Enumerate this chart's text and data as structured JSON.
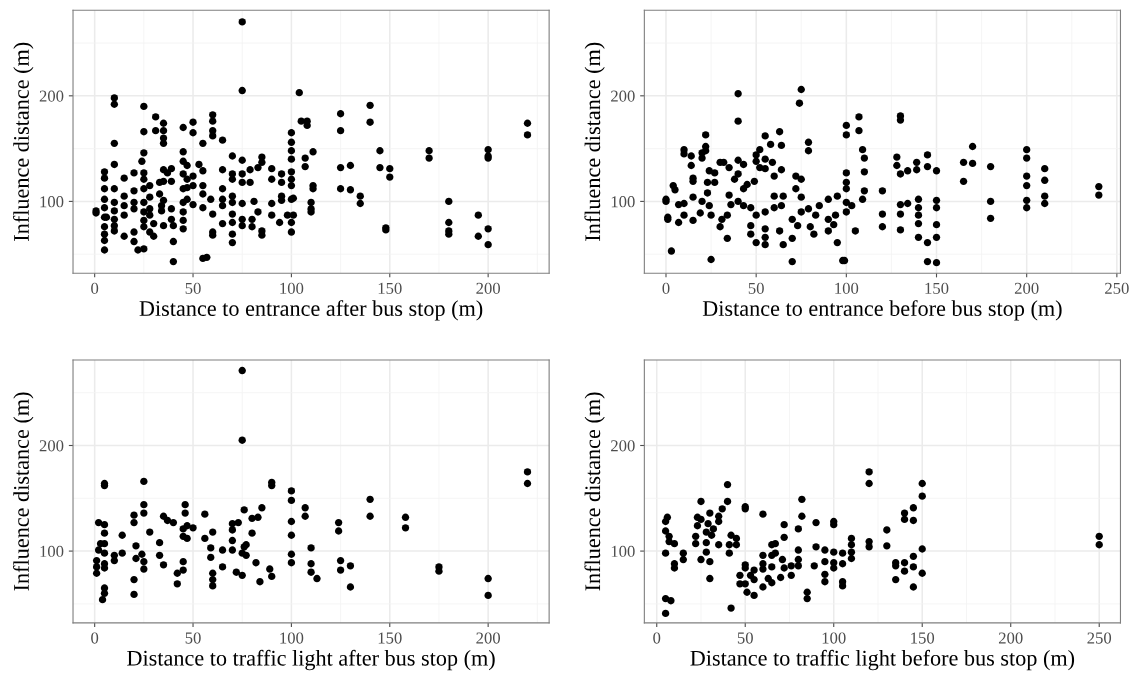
{
  "chart_data": [
    {
      "type": "scatter",
      "xlabel": "Distance to entrance after bus stop (m)",
      "ylabel": "Influence distance (m)",
      "xlim": [
        -11,
        231
      ],
      "ylim": [
        32,
        281
      ],
      "xticks": [
        0,
        50,
        100,
        150,
        200
      ],
      "yticks": [
        100,
        200
      ],
      "grid": true,
      "marker": "circle",
      "series": [
        {
          "color": "#000000",
          "x": [
            0.7,
            0.7,
            5,
            5,
            5,
            5,
            5,
            5,
            5,
            5,
            5,
            5,
            6,
            10,
            10,
            10,
            10,
            10,
            10,
            10,
            10,
            10,
            10,
            15,
            15,
            15,
            15,
            15,
            20,
            20,
            20,
            20,
            20,
            20,
            22,
            25,
            25,
            25,
            24,
            25,
            25,
            25,
            25,
            25,
            25,
            25,
            25,
            28,
            28,
            28,
            28,
            28,
            30,
            30,
            31,
            31,
            33,
            33,
            34,
            34,
            35,
            35,
            35,
            35,
            35,
            35,
            35,
            35,
            37,
            39,
            39,
            39,
            39,
            40,
            40,
            40,
            45,
            45,
            45,
            45,
            45,
            45,
            45,
            45,
            45,
            47,
            47,
            47,
            47,
            50,
            50,
            50,
            50,
            50,
            53,
            55,
            55,
            55,
            55,
            55,
            55,
            57,
            59,
            60,
            60,
            60,
            60,
            60,
            60,
            60,
            65,
            65,
            65,
            65,
            65,
            65,
            70,
            70,
            70,
            70,
            70,
            70,
            70,
            70,
            70,
            75,
            75,
            75,
            75,
            75,
            75,
            75,
            75,
            79,
            79,
            80,
            80,
            81,
            83,
            83,
            85,
            85,
            85,
            85,
            90,
            90,
            90,
            90,
            94,
            95,
            95,
            95,
            95,
            98,
            100,
            100,
            100,
            100,
            100,
            100,
            100,
            100,
            100,
            100,
            101,
            101,
            104,
            105,
            108,
            108,
            107,
            107,
            111,
            111,
            111,
            110,
            110,
            110,
            125,
            125,
            125,
            125,
            130,
            130,
            135,
            135,
            140,
            140,
            145,
            145,
            148,
            148,
            150,
            150,
            170,
            170,
            180,
            180,
            180,
            180,
            195,
            195,
            200,
            200,
            200,
            200,
            200,
            220,
            220
          ],
          "values": [
            91,
            89,
            128,
            122,
            112,
            102,
            94,
            85,
            76,
            69,
            63,
            54,
            85,
            198,
            192,
            155,
            135,
            112,
            99,
            91,
            83,
            77,
            72,
            67,
            122,
            105,
            96,
            87,
            127,
            110,
            99,
            93,
            71,
            62,
            54,
            190,
            166,
            146,
            138,
            127,
            121,
            112,
            99,
            90,
            82,
            76,
            55,
            115,
            104,
            93,
            87,
            71,
            67,
            79,
            180,
            167,
            118,
            107,
            96,
            91,
            174,
            167,
            160,
            155,
            130,
            119,
            101,
            77,
            127,
            131,
            119,
            93,
            83,
            77,
            62,
            43,
            170,
            147,
            138,
            126,
            112,
            99,
            90,
            82,
            74,
            134,
            121,
            113,
            102,
            175,
            165,
            124,
            115,
            97,
            135,
            129,
            115,
            107,
            94,
            155,
            46,
            47,
            102,
            88,
            182,
            176,
            167,
            162,
            71,
            68,
            158,
            130,
            112,
            102,
            96,
            79,
            143,
            126,
            121,
            105,
            99,
            88,
            80,
            69,
            61,
            270,
            205,
            139,
            126,
            118,
            98,
            83,
            77,
            130,
            118,
            83,
            76,
            100,
            132,
            90,
            142,
            137,
            72,
            68,
            131,
            121,
            98,
            87,
            80,
            126,
            118,
            105,
            101,
            87,
            165,
            156,
            148,
            140,
            128,
            121,
            115,
            102,
            80,
            71,
            87,
            103,
            203,
            176,
            176,
            172,
            141,
            133,
            147,
            115,
            112,
            99,
            93,
            90,
            183,
            167,
            132,
            112,
            134,
            111,
            105,
            98,
            191,
            175,
            148,
            132,
            75,
            73,
            131,
            123,
            148,
            141,
            100,
            80,
            72,
            69,
            87,
            67,
            149,
            143,
            141,
            74,
            59,
            174,
            163
          ]
        }
      ]
    },
    {
      "type": "scatter",
      "xlabel": "Distance to entrance before bus stop (m)",
      "ylabel": "Influence distance (m)",
      "xlim": [
        -12,
        252
      ],
      "ylim": [
        32,
        281
      ],
      "xticks": [
        0,
        50,
        100,
        150,
        200,
        250
      ],
      "yticks": [
        100,
        200
      ],
      "grid": true,
      "marker": "circle",
      "series": [
        {
          "color": "#000000",
          "x": [
            0,
            0,
            1,
            1,
            3,
            4,
            5,
            7,
            7,
            10,
            10,
            10,
            10,
            14,
            14,
            15,
            15,
            15,
            15,
            19,
            20,
            20,
            22,
            22,
            22,
            20,
            24,
            23,
            23,
            24,
            25,
            25,
            27,
            27,
            30,
            31,
            30,
            32,
            34,
            34,
            35,
            35,
            36,
            38,
            40,
            40,
            40,
            40,
            40,
            43,
            43,
            43,
            45,
            47,
            47,
            47,
            49,
            50,
            50,
            52,
            52,
            50,
            50,
            55,
            55,
            55,
            55,
            55,
            55,
            55,
            58,
            59,
            60,
            60,
            60,
            63,
            64,
            64,
            65,
            64,
            63,
            65,
            70,
            70,
            70,
            72,
            72,
            73,
            75,
            74,
            75,
            75,
            75,
            79,
            79,
            79,
            80,
            82,
            83,
            85,
            90,
            90,
            90,
            93,
            94,
            95,
            95,
            98,
            99,
            100,
            100,
            100,
            100,
            100,
            100,
            100,
            103,
            105,
            107,
            107,
            109,
            110,
            110,
            110,
            109,
            120,
            120,
            120,
            128,
            128,
            130,
            130,
            130,
            130,
            130,
            130,
            134,
            134,
            139,
            139,
            140,
            140,
            140,
            140,
            140,
            145,
            145,
            145,
            145,
            150,
            150,
            150,
            150,
            150,
            150,
            165,
            165,
            170,
            170,
            180,
            180,
            180,
            200,
            200,
            200,
            200,
            200,
            200,
            210,
            210,
            210,
            210,
            240,
            240
          ],
          "values": [
            102,
            100,
            85,
            83,
            53,
            115,
            111,
            97,
            80,
            98,
            87,
            149,
            145,
            143,
            134,
            122,
            119,
            104,
            82,
            89,
            146,
            141,
            163,
            152,
            148,
            100,
            129,
            118,
            108,
            96,
            87,
            45,
            127,
            118,
            137,
            83,
            76,
            137,
            65,
            87,
            132,
            106,
            97,
            121,
            139,
            202,
            176,
            126,
            100,
            135,
            112,
            96,
            116,
            94,
            77,
            69,
            119,
            144,
            138,
            149,
            132,
            87,
            61,
            162,
            140,
            131,
            90,
            74,
            66,
            59,
            154,
            137,
            105,
            94,
            124,
            166,
            153,
            130,
            105,
            96,
            72,
            59,
            83,
            65,
            43,
            112,
            124,
            77,
            206,
            193,
            121,
            104,
            90,
            156,
            148,
            93,
            76,
            69,
            87,
            96,
            102,
            83,
            72,
            78,
            87,
            105,
            61,
            44,
            44,
            172,
            163,
            127,
            118,
            112,
            99,
            90,
            96,
            72,
            167,
            180,
            149,
            141,
            128,
            110,
            102,
            110,
            88,
            76,
            142,
            134,
            181,
            177,
            126,
            97,
            88,
            73,
            129,
            98,
            137,
            130,
            102,
            94,
            87,
            79,
            66,
            144,
            133,
            61,
            43,
            129,
            101,
            94,
            78,
            66,
            42,
            119,
            137,
            152,
            136,
            133,
            100,
            84,
            149,
            141,
            124,
            115,
            101,
            94,
            131,
            120,
            105,
            98,
            114,
            106
          ]
        }
      ]
    },
    {
      "type": "scatter",
      "xlabel": "Distance to traffic light after bus stop (m)",
      "ylabel": "Influence distance (m)",
      "xlim": [
        -11,
        231
      ],
      "ylim": [
        32,
        281
      ],
      "xticks": [
        0,
        50,
        100,
        150,
        200
      ],
      "yticks": [
        100,
        200
      ],
      "grid": true,
      "marker": "circle",
      "series": [
        {
          "color": "#000000",
          "x": [
            1,
            1,
            1,
            2,
            3,
            2,
            5,
            5,
            5,
            5,
            5,
            5,
            5,
            5,
            5,
            5,
            4,
            10,
            10,
            14,
            14,
            20,
            20,
            21,
            21,
            20,
            20,
            25,
            25,
            25,
            24,
            25,
            25,
            28,
            33,
            33,
            35,
            35,
            37,
            40,
            42,
            42,
            45,
            45,
            45,
            45,
            46,
            46,
            47,
            47,
            50,
            56,
            56,
            59,
            59,
            60,
            60,
            60,
            60,
            65,
            65,
            70,
            70,
            70,
            70,
            72,
            73,
            75,
            75,
            75,
            75,
            76,
            76,
            77,
            77,
            80,
            80,
            82,
            83,
            85,
            84,
            90,
            90,
            89,
            90,
            100,
            100,
            100,
            100,
            100,
            100,
            107,
            107,
            110,
            110,
            110,
            113,
            124,
            124,
            125,
            125,
            130,
            130,
            140,
            140,
            158,
            158,
            175,
            175,
            200,
            200,
            220,
            220
          ],
          "values": [
            91,
            85,
            79,
            127,
            107,
            101,
            164,
            162,
            125,
            117,
            107,
            98,
            88,
            84,
            65,
            60,
            54,
            96,
            91,
            115,
            98,
            134,
            127,
            105,
            93,
            73,
            59,
            166,
            144,
            136,
            97,
            90,
            83,
            118,
            108,
            96,
            87,
            133,
            129,
            127,
            79,
            69,
            121,
            114,
            90,
            82,
            144,
            136,
            124,
            112,
            122,
            135,
            112,
            103,
            94,
            118,
            79,
            67,
            73,
            85,
            101,
            126,
            120,
            110,
            101,
            80,
            127,
            98,
            271,
            205,
            77,
            139,
            104,
            106,
            96,
            131,
            117,
            89,
            132,
            141,
            71,
            165,
            162,
            83,
            76,
            157,
            148,
            128,
            115,
            97,
            89,
            141,
            133,
            103,
            88,
            80,
            74,
            127,
            119,
            91,
            82,
            86,
            66,
            149,
            133,
            132,
            122,
            85,
            81,
            74,
            58,
            175,
            164
          ]
        }
      ]
    },
    {
      "type": "scatter",
      "xlabel": "Distance to traffic light before bus stop (m)",
      "ylabel": "Influence distance (m)",
      "xlim": [
        -7,
        262
      ],
      "ylim": [
        32,
        281
      ],
      "xticks": [
        0,
        50,
        100,
        150,
        200,
        250
      ],
      "yticks": [
        100,
        200
      ],
      "grid": true,
      "marker": "circle",
      "series": [
        {
          "color": "#000000",
          "x": [
            5,
            5,
            8,
            5,
            5,
            5,
            6,
            7,
            7,
            10,
            10,
            10,
            15,
            15,
            22,
            22,
            23,
            23,
            25,
            25,
            25,
            28,
            28,
            28,
            29,
            30,
            30,
            30,
            31,
            32,
            35,
            35,
            35,
            37,
            40,
            40,
            41,
            41,
            42,
            42,
            45,
            45,
            50,
            50,
            50,
            50,
            47,
            47,
            50,
            51,
            53,
            55,
            55,
            55,
            60,
            60,
            60,
            60,
            60,
            63,
            65,
            65,
            65,
            65,
            67,
            67,
            70,
            71,
            72,
            72,
            72,
            76,
            76,
            80,
            80,
            80,
            80,
            82,
            82,
            85,
            85,
            90,
            89,
            90,
            95,
            95,
            95,
            95,
            100,
            100,
            100,
            100,
            100,
            105,
            105,
            105,
            105,
            110,
            110,
            110,
            110,
            120,
            120,
            120,
            120,
            130,
            130,
            135,
            135,
            135,
            140,
            140,
            140,
            140,
            145,
            145,
            145,
            145,
            145,
            150,
            150,
            150,
            150,
            250,
            250
          ],
          "values": [
            41,
            55,
            53,
            98,
            119,
            128,
            132,
            109,
            114,
            107,
            88,
            84,
            98,
            92,
            107,
            114,
            124,
            132,
            92,
            147,
            130,
            118,
            108,
            99,
            126,
            136,
            90,
            74,
            115,
            121,
            133,
            106,
            128,
            140,
            163,
            147,
            106,
            98,
            115,
            46,
            112,
            106,
            140,
            142,
            87,
            84,
            77,
            69,
            69,
            61,
            77,
            82,
            73,
            58,
            135,
            96,
            88,
            83,
            66,
            74,
            106,
            96,
            85,
            70,
            107,
            98,
            75,
            92,
            125,
            113,
            84,
            86,
            77,
            121,
            101,
            92,
            86,
            149,
            133,
            61,
            55,
            104,
            86,
            127,
            101,
            90,
            78,
            71,
            128,
            125,
            99,
            89,
            84,
            98,
            88,
            71,
            67,
            112,
            106,
            99,
            93,
            175,
            164,
            109,
            104,
            120,
            105,
            89,
            86,
            73,
            136,
            130,
            89,
            81,
            141,
            129,
            95,
            85,
            66,
            164,
            152,
            102,
            79,
            114,
            106
          ]
        }
      ]
    }
  ]
}
